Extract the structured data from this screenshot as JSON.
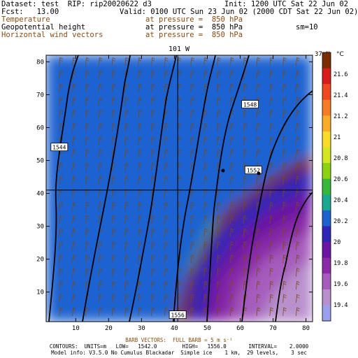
{
  "header": {
    "dataset": "Dataset: test  RIP: rip20020622 d3",
    "init": "Init: 1200 UTC Sat 22 Jun 02",
    "fcst": "Fcst:   13.00",
    "valid": "Valid: 0100 UTC Sun 23 Jun 02 (2000 CDT Sat 22 Jun 02)",
    "fields": [
      {
        "name": "Temperature",
        "pressure": "at pressure =  850 hPa",
        "color": "#8b4a10"
      },
      {
        "name": "Geopotential height",
        "pressure": "at pressure =  850 hPa",
        "color": "#000000"
      },
      {
        "name": "Horizontal wind vectors",
        "pressure": "at pressure =  850 hPa",
        "color": "#8b4a10"
      }
    ],
    "smoothing": "sm=10"
  },
  "map": {
    "title": "101 W",
    "right_label": "37 N",
    "x_ticks": [
      10,
      20,
      30,
      40,
      50,
      60,
      70,
      80
    ],
    "y_ticks": [
      10,
      20,
      30,
      40,
      50,
      60,
      70,
      80
    ],
    "x_range": [
      1,
      82
    ],
    "y_range": [
      1,
      82
    ],
    "contour_labels": [
      {
        "text": "1544",
        "x": 5,
        "y": 54
      },
      {
        "text": "1548",
        "x": 63,
        "y": 67
      },
      {
        "text": "1552",
        "x": 64,
        "y": 47
      },
      {
        "text": "1556",
        "x": 41,
        "y": 3
      }
    ],
    "meridian_x": 41,
    "parallel_y": 41
  },
  "colorbar": {
    "unit": "°C",
    "labels": [
      "21.6",
      "21.4",
      "21.2",
      "21",
      "20.8",
      "20.6",
      "20.4",
      "20.2",
      "20",
      "19.8",
      "19.6",
      "19.4"
    ],
    "colors": [
      "#7a2c05",
      "#d81c1c",
      "#f04820",
      "#f47c24",
      "#f8ac2a",
      "#f8dc28",
      "#d2e622",
      "#8cd212",
      "#38b83a",
      "#1aa890",
      "#1e62d0",
      "#2f26b8",
      "#6a16a2",
      "#8a2aa6",
      "#a65cbc",
      "#b890cc",
      "#9aa0ec"
    ]
  },
  "footer": {
    "barb": "BARB VECTORS:  FULL BARB = 5 m s⁻¹",
    "contours": "CONTOURS:  UNITS=m   LOW=   1542.0        HIGH=   1556.0       INTERVAL=    2.0000",
    "model": "Model info: V3.5.0 No Cumulus Blackadar  Simple ice    1 km,  29 levels,    3 sec"
  }
}
